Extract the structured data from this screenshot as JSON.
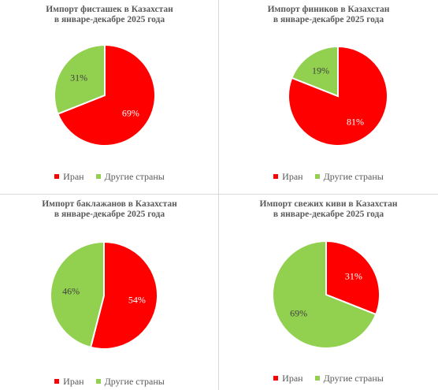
{
  "colors": {
    "iran": "#ff0000",
    "other": "#92d050"
  },
  "legend": {
    "iran": "Иран",
    "other": "Другие страны"
  },
  "chart_data": [
    {
      "type": "pie",
      "title_line1": "Импорт фисташек в Казахстан",
      "title_line2": "в январе-декабре 2025 года",
      "slices": [
        {
          "name": "Иран",
          "value": 69,
          "label": "69%"
        },
        {
          "name": "Другие страны",
          "value": 31,
          "label": "31%"
        }
      ]
    },
    {
      "type": "pie",
      "title_line1": "Импорт фиников в Казахстан",
      "title_line2": "в январе-декабре 2025 года",
      "slices": [
        {
          "name": "Иран",
          "value": 81,
          "label": "81%"
        },
        {
          "name": "Другие страны",
          "value": 19,
          "label": "19%"
        }
      ]
    },
    {
      "type": "pie",
      "title_line1": "Импорт баклажанов в Казахстан",
      "title_line2": "в январе-декабре 2025 года",
      "slices": [
        {
          "name": "Иран",
          "value": 54,
          "label": "54%"
        },
        {
          "name": "Другие страны",
          "value": 46,
          "label": "46%"
        }
      ]
    },
    {
      "type": "pie",
      "title_line1": "Импорт свежих киви в Казахстан",
      "title_line2": "в январе-декабре 2025 года",
      "slices": [
        {
          "name": "Иран",
          "value": 31,
          "label": "31%"
        },
        {
          "name": "Другие страны",
          "value": 69,
          "label": "69%"
        }
      ]
    }
  ]
}
